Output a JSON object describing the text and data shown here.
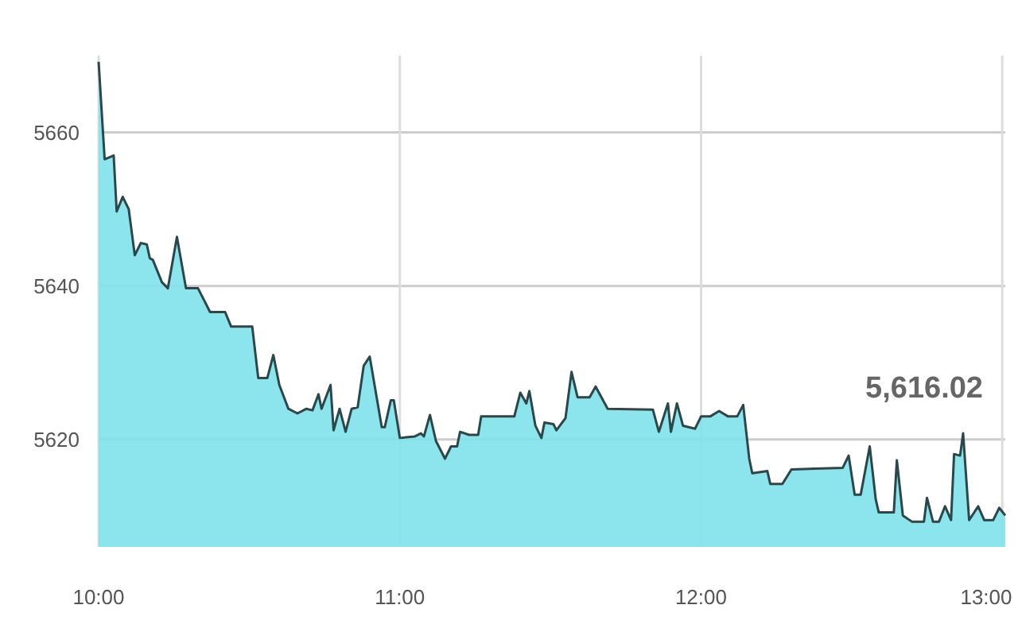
{
  "chart_data": {
    "type": "area",
    "x": [
      10,
      10.02,
      10.05,
      10.06,
      10.08,
      10.1,
      10.12,
      10.14,
      10.16,
      10.17,
      10.18,
      10.21,
      10.23,
      10.26,
      10.29,
      10.33,
      10.37,
      10.42,
      10.44,
      10.51,
      10.53,
      10.56,
      10.58,
      10.6,
      10.63,
      10.66,
      10.69,
      10.71,
      10.73,
      10.74,
      10.77,
      10.78,
      10.8,
      10.82,
      10.84,
      10.86,
      10.88,
      10.9,
      10.94,
      10.95,
      10.97,
      10.98,
      11,
      11.05,
      11.07,
      11.08,
      11.1,
      11.12,
      11.15,
      11.17,
      11.19,
      11.2,
      11.23,
      11.26,
      11.27,
      11.38,
      11.4,
      11.42,
      11.43,
      11.45,
      11.47,
      11.48,
      11.51,
      11.52,
      11.55,
      11.57,
      11.59,
      11.63,
      11.65,
      11.69,
      11.84,
      11.86,
      11.89,
      11.9,
      11.92,
      11.94,
      11.98,
      12,
      12.03,
      12.06,
      12.09,
      12.12,
      12.14,
      12.16,
      12.17,
      12.22,
      12.23,
      12.27,
      12.3,
      12.47,
      12.49,
      12.51,
      12.53,
      12.56,
      12.58,
      12.59,
      12.64,
      12.65,
      12.67,
      12.7,
      12.74,
      12.75,
      12.77,
      12.79,
      12.81,
      12.83,
      12.84,
      12.86,
      12.87,
      12.89,
      12.92,
      12.94,
      12.97,
      12.99,
      13.01
    ],
    "series": [
      {
        "color": "#80e1ea",
        "values": [
          5669.2,
          5656.5,
          5657,
          5649.7,
          5651.6,
          5650,
          5644,
          5645.6,
          5645.4,
          5643.6,
          5643.4,
          5640.5,
          5639.7,
          5646.4,
          5639.7,
          5639.7,
          5636.6,
          5636.6,
          5634.7,
          5634.7,
          5628,
          5628,
          5631,
          5627.1,
          5624,
          5623.4,
          5624,
          5623.8,
          5625.9,
          5624,
          5627.1,
          5621.2,
          5624,
          5621,
          5624,
          5624.2,
          5629.6,
          5630.8,
          5621.6,
          5621.6,
          5625.1,
          5625.1,
          5620.2,
          5620.4,
          5620.8,
          5620.4,
          5623.2,
          5619.8,
          5617.5,
          5619.1,
          5619.1,
          5621,
          5620.6,
          5620.6,
          5623,
          5623,
          5626.1,
          5624.7,
          5626.3,
          5621.8,
          5620.2,
          5622.2,
          5622,
          5621.2,
          5622.8,
          5628.8,
          5625.5,
          5625.5,
          5626.9,
          5624,
          5623.9,
          5621,
          5624.7,
          5621,
          5624.7,
          5621.8,
          5621.4,
          5623,
          5623,
          5623.7,
          5623,
          5623,
          5624.5,
          5617.5,
          5615.6,
          5615.9,
          5614.2,
          5614.2,
          5616.1,
          5616.3,
          5617.9,
          5612.8,
          5612.8,
          5619.1,
          5612.2,
          5610.5,
          5610.5,
          5617.3,
          5610.1,
          5609.3,
          5609.3,
          5612.4,
          5609.3,
          5609.3,
          5611.3,
          5609.5,
          5618.1,
          5617.9,
          5620.8,
          5609.5,
          5611.3,
          5609.5,
          5609.5,
          5611.1,
          5610.1
        ]
      }
    ],
    "xlim": [
      10,
      13.01
    ],
    "xticks": [
      {
        "value": 10,
        "label": "10:00"
      },
      {
        "value": 11,
        "label": "11:00"
      },
      {
        "value": 12,
        "label": "12:00"
      },
      {
        "value": 13,
        "label": "13:00"
      }
    ],
    "ylim": [
      5606,
      5670
    ],
    "yticks": [
      5620,
      5640,
      5660
    ],
    "grid": true,
    "annotations": [
      "5,616.02"
    ]
  }
}
